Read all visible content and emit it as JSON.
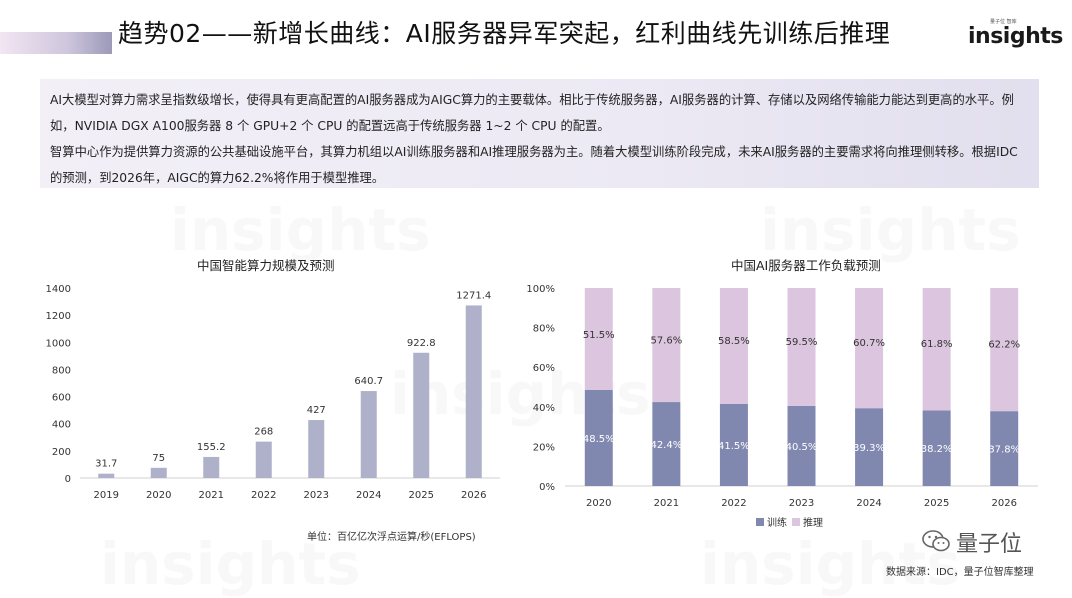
{
  "header": {
    "title": "趋势02——新增长曲线：AI服务器异军突起，红利曲线先训练后推理",
    "logo_small": "量子位 智库",
    "logo_main": "insights"
  },
  "info": {
    "para1": "AI大模型对算力需求呈指数级增长，使得具有更高配置的AI服务器成为AIGC算力的主要载体。相比于传统服务器，AI服务器的计算、存储以及网络传输能力能达到更高的水平。例如，NVIDIA DGX A100服务器 8 个 GPU+2 个 CPU 的配置远高于传统服务器 1~2 个 CPU 的配置。",
    "para2": "智算中心作为提供算力资源的公共基础设施平台，其算力机组以AI训练服务器和AI推理服务器为主。随着大模型训练阶段完成，未来AI服务器的主要需求将向推理侧转移。根据IDC的预测，到2026年，AIGC的算力62.2%将作用于模型推理。"
  },
  "watermark": "insights",
  "chart_data": [
    {
      "type": "bar",
      "title": "中国智能算力规模及预测",
      "categories": [
        "2019",
        "2020",
        "2021",
        "2022",
        "2023",
        "2024",
        "2025",
        "2026"
      ],
      "values": [
        31.7,
        75,
        155.2,
        268,
        427,
        640.7,
        922.8,
        1271.4
      ],
      "value_labels": [
        "31.7",
        "75",
        "155.2",
        "268",
        "427",
        "640.7",
        "922.8",
        "1271.4"
      ],
      "ylim": [
        0,
        1400
      ],
      "yticks": [
        0,
        200,
        400,
        600,
        800,
        1000,
        1200,
        1400
      ],
      "ytick_labels": [
        "0",
        "200",
        "400",
        "600",
        "800",
        "1000",
        "1200",
        "1400"
      ],
      "xlabel": "",
      "ylabel": "",
      "color": "#aeb1c9",
      "grid": false,
      "note": "单位：百亿亿次浮点运算/秒(EFLOPS)"
    },
    {
      "type": "bar",
      "stacked": true,
      "title": "中国AI服务器工作负载预测",
      "categories": [
        "2020",
        "2021",
        "2022",
        "2023",
        "2024",
        "2025",
        "2026"
      ],
      "ylim": [
        0,
        100
      ],
      "yticks": [
        0,
        20,
        40,
        60,
        80,
        100
      ],
      "ytick_labels": [
        "0%",
        "20%",
        "40%",
        "60%",
        "80%",
        "100%"
      ],
      "series": [
        {
          "name": "训练",
          "values": [
            48.5,
            42.4,
            41.5,
            40.5,
            39.3,
            38.2,
            37.8
          ],
          "labels": [
            "48.5%",
            "42.4%",
            "41.5%",
            "40.5%",
            "39.3%",
            "38.2%",
            "37.8%"
          ],
          "color": "#8188b0"
        },
        {
          "name": "推理",
          "values": [
            51.5,
            57.6,
            58.5,
            59.5,
            60.7,
            61.8,
            62.2
          ],
          "labels": [
            "51.5%",
            "57.6%",
            "58.5%",
            "59.5%",
            "60.7%",
            "61.8%",
            "62.2%"
          ],
          "color": "#dcc5de"
        }
      ],
      "legend": "bottom",
      "grid": false
    }
  ],
  "footer": {
    "source": "数据来源：IDC，量子位智库整理",
    "wechat_name": "量子位"
  }
}
